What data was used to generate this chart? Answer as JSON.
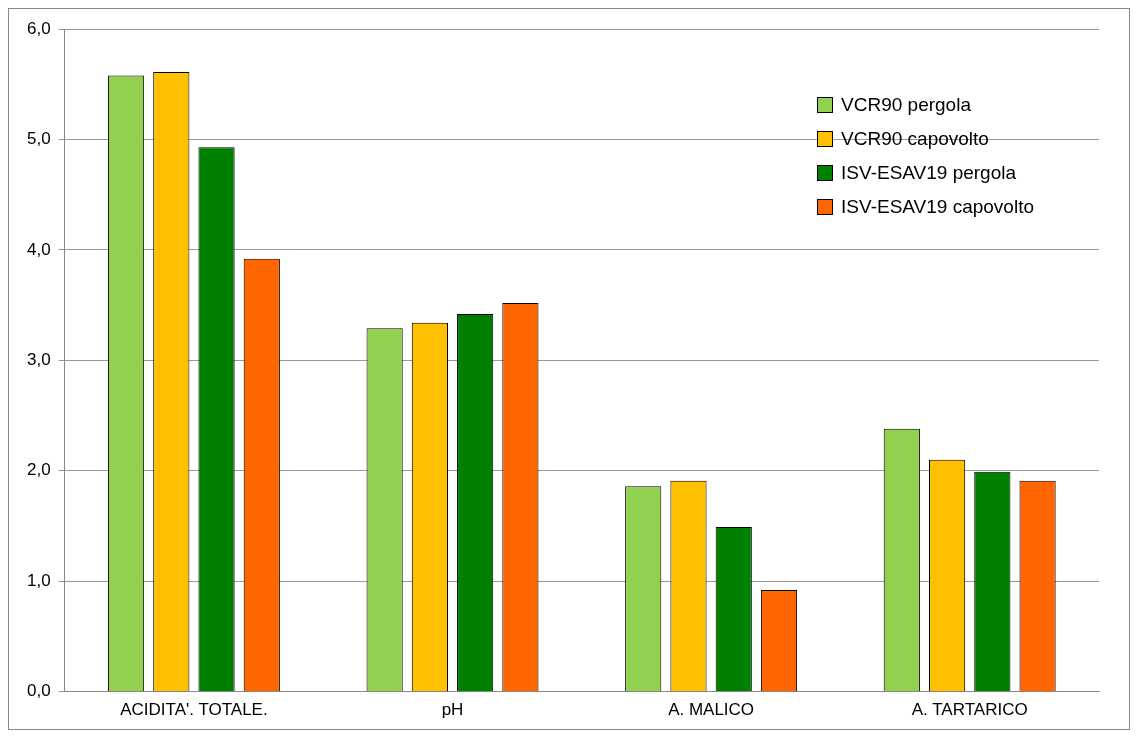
{
  "chart_data": {
    "type": "bar",
    "categories": [
      "ACIDITA'. TOTALE.",
      "pH",
      "A. MALICO",
      "A. TARTARICO"
    ],
    "series": [
      {
        "name": "VCR90 pergola",
        "color": "#92d050",
        "values": [
          5.58,
          3.29,
          1.86,
          2.38
        ]
      },
      {
        "name": "VCR90 capovolto",
        "color": "#ffc000",
        "values": [
          5.61,
          3.34,
          1.91,
          2.1
        ]
      },
      {
        "name": "ISV-ESAV19 pergola",
        "color": "#008000",
        "values": [
          4.93,
          3.42,
          1.49,
          1.99
        ]
      },
      {
        "name": "ISV-ESAV19 capovolto",
        "color": "#ff6600",
        "values": [
          3.92,
          3.52,
          0.92,
          1.91
        ]
      }
    ],
    "ylim": [
      0,
      6
    ],
    "yticks": [
      {
        "value": 0,
        "label": "0,0"
      },
      {
        "value": 1,
        "label": "1,0"
      },
      {
        "value": 2,
        "label": "2,0"
      },
      {
        "value": 3,
        "label": "3,0"
      },
      {
        "value": 4,
        "label": "4,0"
      },
      {
        "value": 5,
        "label": "5,0"
      },
      {
        "value": 6,
        "label": "6,0"
      }
    ],
    "grid": "y",
    "legend": "top right"
  }
}
